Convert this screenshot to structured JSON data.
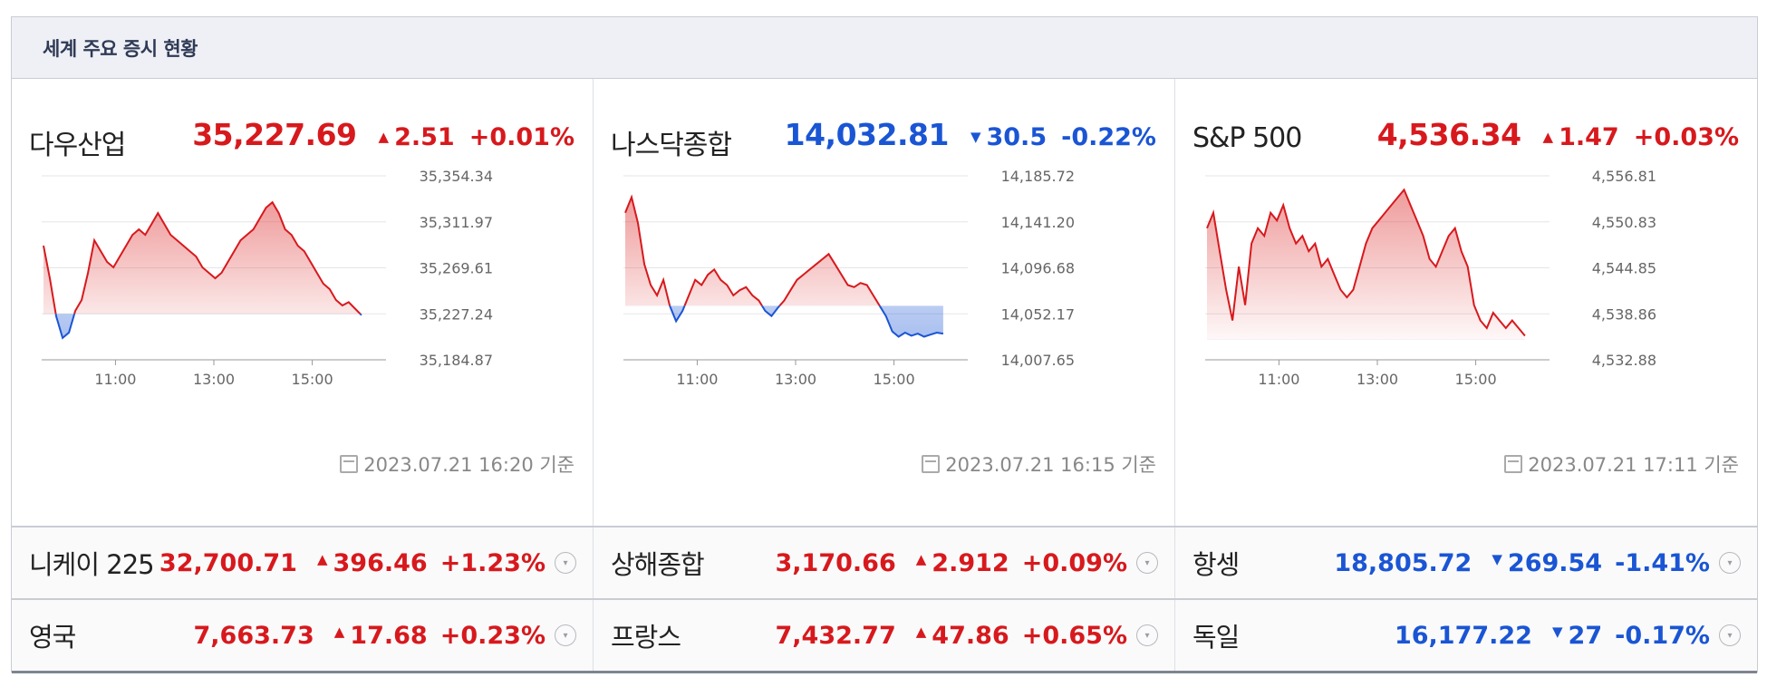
{
  "header": {
    "title": "세계 주요 증시 현황"
  },
  "panels": [
    {
      "name": "다우산업",
      "value": "35,227.69",
      "change": "2.51",
      "pct": "+0.01%",
      "dir": "up",
      "timestamp": "2023.07.21 16:20 기준",
      "yticks": [
        "35,354.34",
        "35,311.97",
        "35,269.61",
        "35,227.24",
        "35,184.87"
      ],
      "xticks": [
        "11:00",
        "13:00",
        "15:00"
      ]
    },
    {
      "name": "나스닥종합",
      "value": "14,032.81",
      "change": "30.5",
      "pct": "-0.22%",
      "dir": "down",
      "timestamp": "2023.07.21 16:15 기준",
      "yticks": [
        "14,185.72",
        "14,141.20",
        "14,096.68",
        "14,052.17",
        "14,007.65"
      ],
      "xticks": [
        "11:00",
        "13:00",
        "15:00"
      ]
    },
    {
      "name": "S&P 500",
      "value": "4,536.34",
      "change": "1.47",
      "pct": "+0.03%",
      "dir": "up",
      "timestamp": "2023.07.21 17:11 기준",
      "yticks": [
        "4,556.81",
        "4,550.83",
        "4,544.85",
        "4,538.86",
        "4,532.88"
      ],
      "xticks": [
        "11:00",
        "13:00",
        "15:00"
      ]
    }
  ],
  "rows": [
    [
      {
        "name": "니케이 225",
        "value": "32,700.71",
        "change": "396.46",
        "pct": "+1.23%",
        "dir": "up"
      },
      {
        "name": "상해종합",
        "value": "3,170.66",
        "change": "2.912",
        "pct": "+0.09%",
        "dir": "up"
      },
      {
        "name": "항셍",
        "value": "18,805.72",
        "change": "269.54",
        "pct": "-1.41%",
        "dir": "down"
      }
    ],
    [
      {
        "name": "영국",
        "value": "7,663.73",
        "change": "17.68",
        "pct": "+0.23%",
        "dir": "up"
      },
      {
        "name": "프랑스",
        "value": "7,432.77",
        "change": "47.86",
        "pct": "+0.65%",
        "dir": "up"
      },
      {
        "name": "독일",
        "value": "16,177.22",
        "change": "27",
        "pct": "-0.17%",
        "dir": "down"
      }
    ]
  ],
  "colors": {
    "up": "#d7191d",
    "down": "#1a55d4",
    "grid": "#e5e5e5"
  },
  "chart_data": [
    {
      "type": "area",
      "series_name": "다우산업",
      "baseline": 35227.24,
      "ylim": [
        35184.87,
        35354.34
      ],
      "x_hours": [
        9.5,
        16.5
      ],
      "series": [
        35290,
        35260,
        35225,
        35205,
        35210,
        35230,
        35240,
        35265,
        35295,
        35285,
        35275,
        35270,
        35280,
        35290,
        35300,
        35305,
        35300,
        35310,
        35320,
        35310,
        35300,
        35295,
        35290,
        35285,
        35280,
        35270,
        35265,
        35260,
        35265,
        35275,
        35285,
        35295,
        35300,
        35305,
        35315,
        35325,
        35330,
        35320,
        35305,
        35300,
        35290,
        35285,
        35275,
        35265,
        35255,
        35250,
        35240,
        35235,
        35238,
        35232,
        35226
      ]
    },
    {
      "type": "area",
      "series_name": "나스닥종합",
      "baseline": 14060,
      "ylim": [
        14007.65,
        14185.72
      ],
      "x_hours": [
        9.5,
        16.5
      ],
      "series": [
        14150,
        14165,
        14140,
        14100,
        14080,
        14070,
        14085,
        14060,
        14045,
        14055,
        14070,
        14085,
        14080,
        14090,
        14095,
        14085,
        14080,
        14070,
        14075,
        14078,
        14070,
        14065,
        14055,
        14050,
        14058,
        14065,
        14075,
        14085,
        14090,
        14095,
        14100,
        14105,
        14110,
        14100,
        14090,
        14080,
        14078,
        14082,
        14080,
        14070,
        14060,
        14050,
        14035,
        14030,
        14034,
        14031,
        14033,
        14030,
        14032,
        14034,
        14033
      ]
    },
    {
      "type": "area",
      "series_name": "S&P 500",
      "baseline": 4535.5,
      "ylim": [
        4532.88,
        4556.81
      ],
      "x_hours": [
        9.5,
        16.5
      ],
      "series": [
        4550,
        4552,
        4547,
        4542,
        4538,
        4545,
        4540,
        4548,
        4550,
        4549,
        4552,
        4551,
        4553,
        4550,
        4548,
        4549,
        4547,
        4548,
        4545,
        4546,
        4544,
        4542,
        4541,
        4542,
        4545,
        4548,
        4550,
        4551,
        4552,
        4553,
        4554,
        4555,
        4553,
        4551,
        4549,
        4546,
        4545,
        4547,
        4549,
        4550,
        4547,
        4545,
        4540,
        4538,
        4537,
        4539,
        4538,
        4537,
        4538,
        4537,
        4536
      ]
    }
  ]
}
